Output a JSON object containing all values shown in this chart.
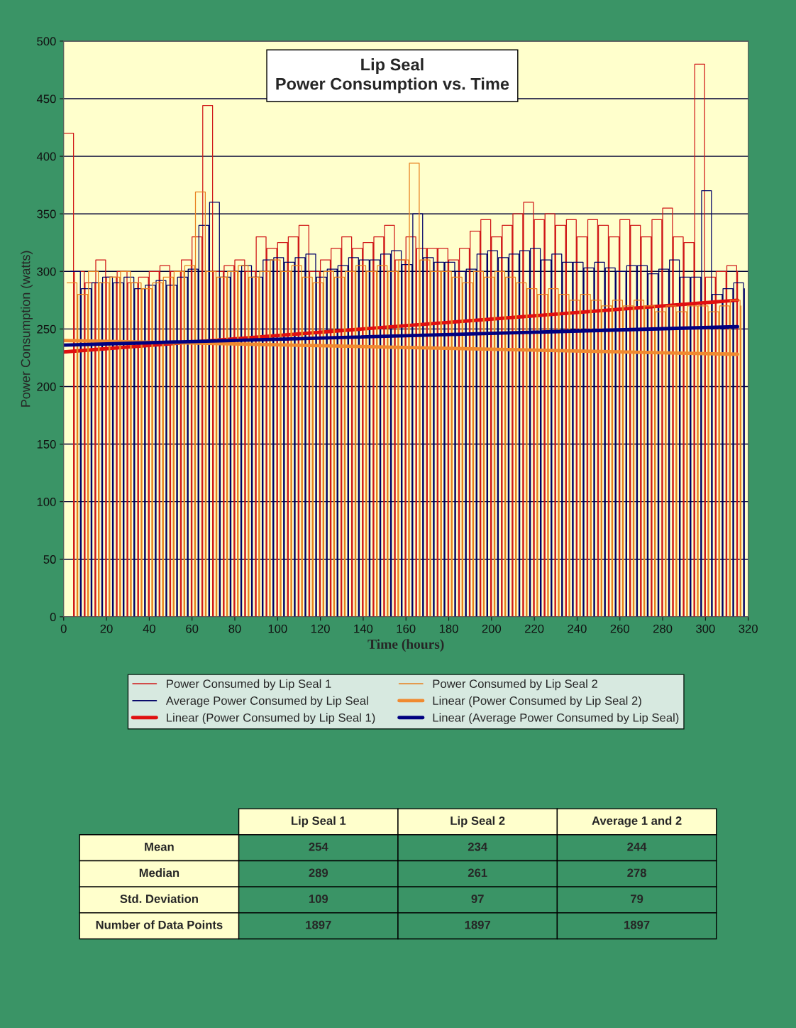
{
  "chart_data": {
    "type": "step",
    "title": "Lip Seal",
    "subtitle": "Power Consumption vs. Time",
    "xlabel": "Time (hours)",
    "ylabel": "Power Consumption (watts)",
    "x": [
      0,
      4.6,
      5,
      9.6,
      10,
      14.6,
      15,
      19.6,
      20,
      24.6,
      25,
      29.6,
      30,
      34.6,
      35,
      39.6,
      40,
      44.6,
      45,
      49.6,
      50,
      54.6,
      55,
      59.6,
      60,
      64.6,
      65,
      69.6,
      70,
      74.6,
      75,
      79.6,
      80,
      84.6,
      85,
      89.6,
      90,
      94.6,
      95,
      99.6,
      100,
      104.6,
      105,
      109.6,
      110,
      114.6,
      115,
      119.6,
      120,
      124.6,
      125,
      129.6,
      130,
      134.6,
      135,
      139.6,
      140,
      144.6,
      145,
      149.6,
      150,
      154.6,
      155,
      159.6,
      160,
      164.6,
      165,
      169.6,
      170,
      174.6,
      175,
      179.6,
      180,
      184.6,
      185,
      189.6,
      190,
      194.6,
      195,
      199.6,
      200,
      204.6,
      205,
      209.6,
      210,
      214.6,
      215,
      219.6,
      220,
      224.6,
      225,
      229.6,
      230,
      234.6,
      235,
      239.6,
      240,
      244.6,
      245,
      249.6,
      250,
      254.6,
      255,
      259.6,
      260,
      264.6,
      265,
      269.6,
      270,
      274.6,
      275,
      279.6,
      280,
      284.6,
      285,
      289.6,
      290,
      294.6,
      295,
      299.6,
      300,
      304.6,
      305,
      309.6,
      310,
      314.6,
      315
    ],
    "series": [
      {
        "name": "Power Consumed by Lip Seal 1",
        "color": "#d01818",
        "values": [
          420,
          0,
          300,
          0,
          290,
          0,
          310,
          0,
          295,
          0,
          300,
          0,
          290,
          0,
          295,
          0,
          300,
          0,
          305,
          0,
          300,
          0,
          310,
          0,
          330,
          0,
          444,
          0,
          300,
          0,
          305,
          0,
          310,
          0,
          300,
          0,
          330,
          0,
          320,
          0,
          325,
          0,
          330,
          0,
          340,
          0,
          300,
          0,
          310,
          0,
          320,
          0,
          330,
          0,
          320,
          0,
          325,
          0,
          330,
          0,
          340,
          0,
          310,
          0,
          330,
          0,
          320,
          0,
          320,
          0,
          320,
          0,
          310,
          0,
          320,
          0,
          335,
          0,
          345,
          0,
          330,
          0,
          340,
          0,
          350,
          0,
          360,
          0,
          345,
          0,
          350,
          0,
          340,
          0,
          345,
          0,
          330,
          0,
          345,
          0,
          340,
          0,
          330,
          0,
          345,
          0,
          340,
          0,
          330,
          0,
          345,
          0,
          355,
          0,
          330,
          0,
          325,
          0,
          480,
          0,
          295,
          0,
          300,
          0,
          305,
          0,
          300
        ]
      },
      {
        "name": "Average Power Consumed by Lip Seal",
        "color": "#000066",
        "x": [
          3.2,
          7.8,
          8.2,
          12.8,
          13.2,
          17.8,
          18.2,
          22.8,
          23.2,
          27.8,
          28.2,
          32.8,
          33.2,
          37.8,
          38.2,
          42.8,
          43.2,
          47.8,
          48.2,
          52.8,
          53.2,
          57.8,
          58.2,
          62.8,
          63.2,
          67.8,
          68.2,
          72.8,
          73.2,
          77.8,
          78.2,
          82.8,
          83.2,
          87.8,
          88.2,
          92.8,
          93.2,
          97.8,
          98.2,
          102.8,
          103.2,
          107.8,
          108.2,
          112.8,
          113.2,
          117.8,
          118.2,
          122.8,
          123.2,
          127.8,
          128.2,
          132.8,
          133.2,
          137.8,
          138.2,
          142.8,
          143.2,
          147.8,
          148.2,
          152.8,
          153.2,
          157.8,
          158.2,
          162.8,
          163.2,
          167.8,
          168.2,
          172.8,
          173.2,
          177.8,
          178.2,
          182.8,
          183.2,
          187.8,
          188.2,
          192.8,
          193.2,
          197.8,
          198.2,
          202.8,
          203.2,
          207.8,
          208.2,
          212.8,
          213.2,
          217.8,
          218.2,
          222.8,
          223.2,
          227.8,
          228.2,
          232.8,
          233.2,
          237.8,
          238.2,
          242.8,
          243.2,
          247.8,
          248.2,
          252.8,
          253.2,
          257.8,
          258.2,
          262.8,
          263.2,
          267.8,
          268.2,
          272.8,
          273.2,
          277.8,
          278.2,
          282.8,
          283.2,
          287.8,
          288.2,
          292.8,
          293.2,
          297.8,
          298.2,
          302.8,
          303.2,
          307.8,
          308.2,
          312.8,
          313.2,
          317.8,
          318.2
        ],
        "values": [
          300,
          0,
          285,
          0,
          290,
          0,
          295,
          0,
          290,
          0,
          295,
          0,
          285,
          0,
          288,
          0,
          292,
          0,
          288,
          0,
          295,
          0,
          302,
          0,
          340,
          0,
          360,
          0,
          295,
          0,
          300,
          0,
          305,
          0,
          295,
          0,
          310,
          0,
          312,
          0,
          308,
          0,
          312,
          0,
          315,
          0,
          295,
          0,
          302,
          0,
          305,
          0,
          312,
          0,
          310,
          0,
          310,
          0,
          315,
          0,
          318,
          0,
          306,
          0,
          350,
          0,
          312,
          0,
          308,
          0,
          308,
          0,
          300,
          0,
          302,
          0,
          315,
          0,
          318,
          0,
          312,
          0,
          315,
          0,
          318,
          0,
          320,
          0,
          310,
          0,
          315,
          0,
          308,
          0,
          308,
          0,
          303,
          0,
          308,
          0,
          303,
          0,
          300,
          0,
          305,
          0,
          305,
          0,
          298,
          0,
          302,
          0,
          310,
          0,
          295,
          0,
          295,
          0,
          370,
          0,
          280,
          0,
          285,
          0,
          290,
          0,
          285
        ]
      },
      {
        "name": "Linear (Power Consumed by Lip Seal 1)",
        "type": "line",
        "color": "#e01010",
        "x": [
          0,
          315
        ],
        "values": [
          230,
          275
        ]
      },
      {
        "name": "Power Consumed by Lip Seal 2",
        "color": "#e8801e",
        "x": [
          1.6,
          6.2,
          6.6,
          11.2,
          11.6,
          16.2,
          16.6,
          21.2,
          21.6,
          26.2,
          26.6,
          31.2,
          31.6,
          36.2,
          36.6,
          41.2,
          41.6,
          46.2,
          46.6,
          51.2,
          51.6,
          56.2,
          56.6,
          61.2,
          61.6,
          66.2,
          66.6,
          71.2,
          71.6,
          76.2,
          76.6,
          81.2,
          81.6,
          86.2,
          86.6,
          91.2,
          91.6,
          96.2,
          96.6,
          101.2,
          101.6,
          106.2,
          106.6,
          111.2,
          111.6,
          116.2,
          116.6,
          121.2,
          121.6,
          126.2,
          126.6,
          131.2,
          131.6,
          136.2,
          136.6,
          141.2,
          141.6,
          146.2,
          146.6,
          151.2,
          151.6,
          156.2,
          156.6,
          161.2,
          161.6,
          166.2,
          166.6,
          171.2,
          171.6,
          176.2,
          176.6,
          181.2,
          181.6,
          186.2,
          186.6,
          191.2,
          191.6,
          196.2,
          196.6,
          201.2,
          201.6,
          206.2,
          206.6,
          211.2,
          211.6,
          216.2,
          216.6,
          221.2,
          221.6,
          226.2,
          226.6,
          231.2,
          231.6,
          236.2,
          236.6,
          241.2,
          241.6,
          246.2,
          246.6,
          251.2,
          251.6,
          256.2,
          256.6,
          261.2,
          261.6,
          266.2,
          266.6,
          271.2,
          271.6,
          276.2,
          276.6,
          281.2,
          281.6,
          286.2,
          286.6,
          291.2,
          291.6,
          296.2,
          296.6,
          301.2,
          301.6,
          306.2,
          306.6,
          311.2,
          311.6,
          316.2,
          316.6
        ],
        "values": [
          290,
          0,
          280,
          0,
          300,
          0,
          290,
          0,
          295,
          0,
          300,
          0,
          290,
          0,
          285,
          0,
          290,
          0,
          295,
          0,
          300,
          0,
          305,
          0,
          369,
          0,
          300,
          0,
          295,
          0,
          300,
          0,
          305,
          0,
          295,
          0,
          300,
          0,
          310,
          0,
          300,
          0,
          305,
          0,
          295,
          0,
          290,
          0,
          300,
          0,
          295,
          0,
          300,
          0,
          305,
          0,
          300,
          0,
          305,
          0,
          300,
          0,
          310,
          0,
          394,
          0,
          310,
          0,
          300,
          0,
          300,
          0,
          295,
          0,
          290,
          0,
          300,
          0,
          295,
          0,
          300,
          0,
          295,
          0,
          290,
          0,
          285,
          0,
          280,
          0,
          285,
          0,
          280,
          0,
          275,
          0,
          280,
          0,
          275,
          0,
          270,
          0,
          275,
          0,
          270,
          0,
          275,
          0,
          270,
          0,
          265,
          0,
          270,
          0,
          265,
          0,
          270,
          0,
          270,
          0,
          265,
          0,
          270,
          0,
          275,
          0,
          270
        ]
      },
      {
        "name": "Linear (Power Consumed by Lip Seal 2)",
        "type": "line",
        "color": "#f08a30",
        "x": [
          0,
          315
        ],
        "values": [
          240,
          228
        ]
      },
      {
        "name": "Linear (Average Power Consumed by Lip Seal)",
        "type": "line",
        "color": "#000080",
        "x": [
          0,
          315
        ],
        "values": [
          236,
          252
        ]
      }
    ],
    "xlim": [
      0,
      320
    ],
    "xticks": [
      0,
      20,
      40,
      60,
      80,
      100,
      120,
      140,
      160,
      180,
      200,
      220,
      240,
      260,
      280,
      300,
      320
    ],
    "ylim": [
      0,
      500
    ],
    "yticks": [
      0,
      50,
      100,
      150,
      200,
      250,
      300,
      350,
      400,
      450,
      500
    ],
    "grid": "y",
    "legend": "bottom",
    "annotations": [
      "Lip Seal 1",
      "Lip Seal 2",
      "Average 1 and 2",
      "Mean",
      "254",
      "234",
      "244",
      "Median",
      "289",
      "261",
      "278",
      "Std. Deviation",
      "109",
      "97",
      "79",
      "Number of Data Points",
      "1897",
      "1897",
      "1897"
    ]
  }
}
